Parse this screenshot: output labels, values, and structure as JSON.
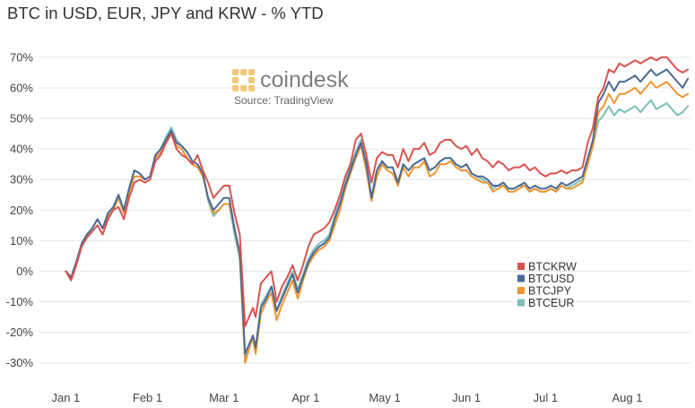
{
  "title": "BTC in USD, EUR, JPY and KRW - % YTD",
  "logo": {
    "word": "coindesk",
    "source": "Source: TradingView",
    "color": "#f2c97a"
  },
  "chart_data": {
    "type": "line",
    "title": "BTC in USD, EUR, JPY and KRW - % YTD",
    "xlabel": "",
    "ylabel": "",
    "x_unit": "days since start of year",
    "xlim": [
      -10,
      237
    ],
    "ylim": [
      -38,
      77
    ],
    "x_ticks": [
      {
        "label": "Jan 1",
        "value": 0
      },
      {
        "label": "Feb 1",
        "value": 31
      },
      {
        "label": "Mar 1",
        "value": 60
      },
      {
        "label": "Apr 1",
        "value": 91
      },
      {
        "label": "May 1",
        "value": 121
      },
      {
        "label": "Jun 1",
        "value": 152
      },
      {
        "label": "Jul 1",
        "value": 182
      },
      {
        "label": "Aug 1",
        "value": 213
      }
    ],
    "y_ticks": [
      {
        "label": "70%",
        "value": 70
      },
      {
        "label": "60%",
        "value": 60
      },
      {
        "label": "50%",
        "value": 50
      },
      {
        "label": "40%",
        "value": 40
      },
      {
        "label": "30%",
        "value": 30
      },
      {
        "label": "20%",
        "value": 20
      },
      {
        "label": "10%",
        "value": 10
      },
      {
        "label": "0%",
        "value": 0
      },
      {
        "label": "-10%",
        "value": -10
      },
      {
        "label": "-20%",
        "value": -20
      },
      {
        "label": "-30%",
        "value": -30
      }
    ],
    "grid": "horizontal",
    "legend_position": "bottom-right",
    "x": [
      0,
      2,
      4,
      6,
      8,
      10,
      12,
      14,
      16,
      18,
      20,
      22,
      24,
      26,
      28,
      30,
      32,
      34,
      36,
      38,
      40,
      42,
      44,
      46,
      48,
      50,
      52,
      54,
      56,
      58,
      60,
      62,
      64,
      66,
      68,
      70,
      71,
      72,
      74,
      76,
      78,
      80,
      82,
      84,
      86,
      88,
      90,
      92,
      94,
      96,
      98,
      100,
      102,
      104,
      106,
      108,
      110,
      112,
      114,
      116,
      118,
      120,
      122,
      124,
      126,
      128,
      130,
      132,
      134,
      136,
      138,
      140,
      142,
      144,
      146,
      148,
      150,
      152,
      154,
      156,
      158,
      160,
      162,
      164,
      166,
      168,
      170,
      172,
      174,
      176,
      178,
      180,
      182,
      184,
      186,
      188,
      190,
      192,
      194,
      196,
      198,
      200,
      202,
      204,
      206,
      208,
      210,
      212,
      214,
      216,
      218,
      220,
      222,
      224,
      226,
      228,
      230,
      232,
      234,
      236
    ],
    "series": [
      {
        "name": "BTCKRW",
        "color": "#d9534f",
        "values": [
          0,
          -3,
          2,
          8,
          11,
          13,
          15,
          12,
          17,
          20,
          21,
          17,
          24,
          29,
          30,
          29,
          30,
          36,
          38,
          42,
          45,
          40,
          38,
          37,
          35,
          38,
          33,
          29,
          24,
          26,
          28,
          28,
          19,
          12,
          -18,
          -14,
          -12,
          -15,
          -4,
          -2,
          0,
          -10,
          -5,
          -2,
          2,
          -3,
          2,
          8,
          12,
          13,
          14,
          16,
          20,
          25,
          31,
          35,
          43,
          45,
          38,
          29,
          37,
          39,
          38,
          38,
          34,
          40,
          36,
          40,
          40,
          42,
          38,
          39,
          42,
          43,
          43,
          41,
          40,
          41,
          38,
          40,
          37,
          36,
          34,
          36,
          35,
          33,
          34,
          34,
          35,
          33,
          34,
          32,
          31,
          32,
          32,
          33,
          32,
          33,
          33,
          34,
          42,
          47,
          57,
          60,
          66,
          65,
          68,
          67,
          68,
          69,
          68,
          69,
          70,
          69,
          70,
          70,
          68,
          66,
          65,
          66
        ]
      },
      {
        "name": "BTCUSD",
        "color": "#4a6b96",
        "values": [
          0,
          -2,
          3,
          9,
          12,
          14,
          17,
          14,
          19,
          21,
          25,
          20,
          27,
          33,
          32,
          30,
          31,
          38,
          40,
          43,
          46,
          42,
          41,
          39,
          36,
          35,
          32,
          24,
          20,
          22,
          24,
          24,
          14,
          6,
          -27,
          -23,
          -21,
          -25,
          -12,
          -9,
          -5,
          -13,
          -9,
          -5,
          -1,
          -7,
          -2,
          3,
          6,
          8,
          9,
          11,
          17,
          22,
          28,
          33,
          38,
          42,
          35,
          24,
          33,
          36,
          34,
          34,
          29,
          35,
          33,
          35,
          36,
          37,
          33,
          34,
          36,
          37,
          37,
          35,
          34,
          35,
          32,
          31,
          31,
          30,
          28,
          28,
          29,
          27,
          27,
          28,
          29,
          27,
          28,
          27,
          27,
          28,
          27,
          29,
          28,
          29,
          30,
          31,
          37,
          43,
          55,
          58,
          62,
          59,
          62,
          62,
          63,
          64,
          62,
          64,
          66,
          64,
          65,
          66,
          64,
          62,
          60,
          63
        ]
      },
      {
        "name": "BTCJPY",
        "color": "#f0952f",
        "values": [
          0,
          -2,
          3,
          9,
          12,
          14,
          17,
          14,
          18,
          20,
          24,
          19,
          26,
          31,
          31,
          30,
          31,
          37,
          39,
          42,
          45,
          41,
          40,
          37,
          35,
          34,
          31,
          24,
          19,
          20,
          22,
          22,
          14,
          5,
          -30,
          -24,
          -22,
          -27,
          -14,
          -10,
          -7,
          -16,
          -11,
          -7,
          -3,
          -9,
          -3,
          2,
          5,
          7,
          8,
          10,
          15,
          20,
          27,
          32,
          37,
          41,
          33,
          23,
          31,
          35,
          33,
          32,
          28,
          34,
          31,
          34,
          34,
          36,
          31,
          32,
          35,
          35,
          36,
          34,
          33,
          33,
          31,
          30,
          29,
          29,
          26,
          27,
          28,
          26,
          26,
          27,
          28,
          26,
          27,
          26,
          26,
          27,
          26,
          28,
          27,
          27,
          28,
          29,
          35,
          41,
          52,
          54,
          58,
          55,
          58,
          58,
          59,
          60,
          58,
          60,
          62,
          60,
          61,
          62,
          60,
          58,
          57,
          58
        ]
      },
      {
        "name": "BTCEUR",
        "color": "#7bbfb8",
        "values": [
          0,
          -2,
          3,
          8,
          12,
          14,
          17,
          14,
          19,
          21,
          25,
          20,
          27,
          33,
          32,
          30,
          31,
          38,
          40,
          44,
          47,
          43,
          41,
          39,
          36,
          35,
          32,
          23,
          18,
          20,
          22,
          22,
          12,
          4,
          -29,
          -23,
          -22,
          -26,
          -11,
          -8,
          -5,
          -13,
          -8,
          -4,
          0,
          -6,
          -1,
          4,
          7,
          9,
          10,
          12,
          18,
          23,
          29,
          34,
          39,
          43,
          35,
          24,
          33,
          36,
          34,
          34,
          29,
          35,
          33,
          35,
          36,
          37,
          33,
          34,
          36,
          37,
          37,
          35,
          34,
          35,
          32,
          31,
          30,
          29,
          27,
          28,
          28,
          27,
          27,
          28,
          28,
          26,
          27,
          26,
          26,
          27,
          26,
          28,
          27,
          28,
          29,
          30,
          36,
          41,
          49,
          51,
          54,
          51,
          53,
          52,
          53,
          54,
          52,
          54,
          56,
          53,
          54,
          55,
          53,
          51,
          52,
          54
        ]
      }
    ]
  }
}
